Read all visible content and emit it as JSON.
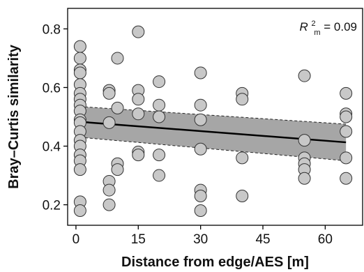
{
  "chart_data": {
    "type": "scatter",
    "xlabel": "Distance from edge/AES [m]",
    "ylabel": "Bray–Curtis similarity",
    "annotation": {
      "prefix": "R",
      "sup": "2",
      "sub": "m",
      "text": " = 0.09"
    },
    "xlim": [
      -2,
      69
    ],
    "ylim": [
      0.13,
      0.87
    ],
    "x_ticks": [
      0,
      15,
      30,
      45,
      60
    ],
    "x_tick_labels": [
      "0",
      "15",
      "30",
      "45",
      "60"
    ],
    "y_ticks": [
      0.2,
      0.4,
      0.6,
      0.8
    ],
    "y_tick_labels": [
      "0.2",
      "0.4",
      "0.6",
      "0.8"
    ],
    "colors": {
      "point_fill": "#c8c8c8",
      "point_stroke": "#333333",
      "band_fill": "#a6a6a6",
      "line": "#000000"
    },
    "regression": {
      "x": [
        1,
        65
      ],
      "y": [
        0.483,
        0.413
      ]
    },
    "confidence_band": {
      "x": [
        1,
        65
      ],
      "upper": [
        0.535,
        0.475
      ],
      "lower": [
        0.43,
        0.35
      ]
    },
    "points": [
      {
        "x": 1,
        "y": 0.74
      },
      {
        "x": 1,
        "y": 0.7
      },
      {
        "x": 1,
        "y": 0.66
      },
      {
        "x": 1,
        "y": 0.65
      },
      {
        "x": 1,
        "y": 0.61
      },
      {
        "x": 1,
        "y": 0.58
      },
      {
        "x": 1,
        "y": 0.56
      },
      {
        "x": 1,
        "y": 0.54
      },
      {
        "x": 1,
        "y": 0.52
      },
      {
        "x": 1,
        "y": 0.49
      },
      {
        "x": 1,
        "y": 0.48
      },
      {
        "x": 1,
        "y": 0.45
      },
      {
        "x": 1,
        "y": 0.42
      },
      {
        "x": 1,
        "y": 0.4
      },
      {
        "x": 1,
        "y": 0.37
      },
      {
        "x": 1,
        "y": 0.35
      },
      {
        "x": 1,
        "y": 0.32
      },
      {
        "x": 1,
        "y": 0.21
      },
      {
        "x": 1,
        "y": 0.18
      },
      {
        "x": 8,
        "y": 0.59
      },
      {
        "x": 8,
        "y": 0.58
      },
      {
        "x": 8,
        "y": 0.48
      },
      {
        "x": 8,
        "y": 0.28
      },
      {
        "x": 8,
        "y": 0.25
      },
      {
        "x": 8,
        "y": 0.2
      },
      {
        "x": 10,
        "y": 0.7
      },
      {
        "x": 10,
        "y": 0.53
      },
      {
        "x": 10,
        "y": 0.34
      },
      {
        "x": 10,
        "y": 0.32
      },
      {
        "x": 15,
        "y": 0.79
      },
      {
        "x": 15,
        "y": 0.59
      },
      {
        "x": 15,
        "y": 0.56
      },
      {
        "x": 15,
        "y": 0.51
      },
      {
        "x": 15,
        "y": 0.38
      },
      {
        "x": 15,
        "y": 0.37
      },
      {
        "x": 20,
        "y": 0.62
      },
      {
        "x": 20,
        "y": 0.54
      },
      {
        "x": 20,
        "y": 0.5
      },
      {
        "x": 20,
        "y": 0.37
      },
      {
        "x": 20,
        "y": 0.3
      },
      {
        "x": 30,
        "y": 0.65
      },
      {
        "x": 30,
        "y": 0.54
      },
      {
        "x": 30,
        "y": 0.49
      },
      {
        "x": 30,
        "y": 0.39
      },
      {
        "x": 30,
        "y": 0.25
      },
      {
        "x": 30,
        "y": 0.23
      },
      {
        "x": 30,
        "y": 0.18
      },
      {
        "x": 40,
        "y": 0.58
      },
      {
        "x": 40,
        "y": 0.56
      },
      {
        "x": 40,
        "y": 0.36
      },
      {
        "x": 40,
        "y": 0.23
      },
      {
        "x": 55,
        "y": 0.64
      },
      {
        "x": 55,
        "y": 0.42
      },
      {
        "x": 55,
        "y": 0.36
      },
      {
        "x": 55,
        "y": 0.34
      },
      {
        "x": 55,
        "y": 0.32
      },
      {
        "x": 55,
        "y": 0.29
      },
      {
        "x": 65,
        "y": 0.58
      },
      {
        "x": 65,
        "y": 0.51
      },
      {
        "x": 65,
        "y": 0.5
      },
      {
        "x": 65,
        "y": 0.45
      },
      {
        "x": 65,
        "y": 0.36
      },
      {
        "x": 65,
        "y": 0.29
      }
    ]
  }
}
